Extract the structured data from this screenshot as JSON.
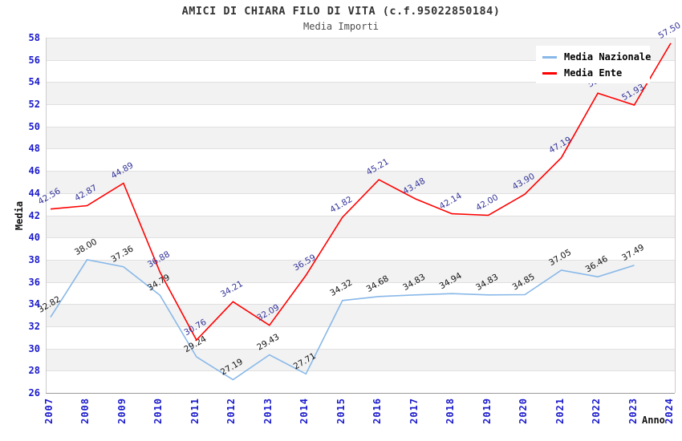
{
  "title": "AMICI DI CHIARA FILO DI VITA (c.f.95022850184)",
  "subtitle": "Media Importi",
  "axes": {
    "y_label": "Media",
    "x_label": "Anno",
    "y_min": 26,
    "y_max": 58,
    "y_step": 2,
    "tick_color": "#1a1acc"
  },
  "legend": {
    "position": "top-right",
    "items": [
      {
        "label": "Media Nazionale",
        "color": "#88b8e8"
      },
      {
        "label": "Media Ente",
        "color": "#ff0000"
      }
    ]
  },
  "chart_data": {
    "type": "line",
    "title": "Media Importi",
    "xlabel": "Anno",
    "ylabel": "Media",
    "ylim": [
      26,
      58
    ],
    "grid": "horizontal-bands",
    "legend_position": "top-right",
    "band_color": "#f2f2f2",
    "gridline_color": "#e0e0e0",
    "x": [
      "2007",
      "2008",
      "2009",
      "2010",
      "2011",
      "2012",
      "2013",
      "2014",
      "2015",
      "2016",
      "2017",
      "2018",
      "2019",
      "2020",
      "2021",
      "2022",
      "2023",
      "2024"
    ],
    "series": [
      {
        "name": "Media Nazionale",
        "color": "#88b8e8",
        "label_color": "#111111",
        "values": [
          32.82,
          38.0,
          37.36,
          34.79,
          29.24,
          27.19,
          29.43,
          27.71,
          34.32,
          34.68,
          34.83,
          34.94,
          34.83,
          34.85,
          37.05,
          36.46,
          37.49,
          null
        ],
        "labels": [
          "32.82",
          "38.00",
          "37.36",
          "34.79",
          "29.24",
          "27.19",
          "29.43",
          "27.71",
          "34.32",
          "34.68",
          "34.83",
          "34.94",
          "34.83",
          "34.85",
          "37.05",
          "36.46",
          "37.49",
          null
        ]
      },
      {
        "name": "Media Ente",
        "color": "#ff0000",
        "label_color": "#333399",
        "values": [
          42.56,
          42.87,
          44.89,
          36.88,
          30.76,
          34.21,
          32.09,
          36.59,
          41.82,
          45.21,
          43.48,
          42.14,
          42.0,
          43.9,
          47.19,
          53.0,
          51.93,
          57.5
        ],
        "labels": [
          "42.56",
          "42.87",
          "44.89",
          "36.88",
          "30.76",
          "34.21",
          "32.09",
          "36.59",
          "41.82",
          "45.21",
          "43.48",
          "42.14",
          "42.00",
          "43.90",
          "47.19",
          "53.0",
          "51.93",
          "57.50"
        ]
      }
    ]
  }
}
